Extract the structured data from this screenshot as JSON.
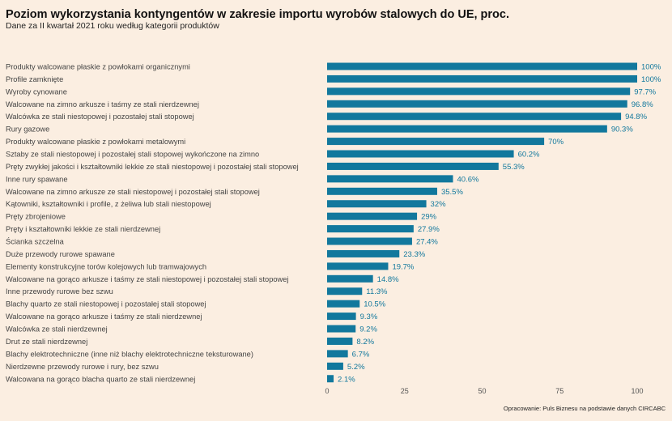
{
  "chart_data": {
    "type": "bar",
    "orientation": "horizontal",
    "title": "Poziom wykorzystania kontyngentów w zakresie importu wyrobów stalowych do UE, proc.",
    "subtitle": "Dane za II kwartał 2021 roku według kategorii produktów",
    "source": "Opracowanie: Puls Biznesu na podstawie danych CIRCABC",
    "categories": [
      "Produkty walcowane płaskie z powłokami organicznymi",
      "Profile zamknięte",
      "Wyroby cynowane",
      "Walcowane na zimno arkusze i taśmy ze stali nierdzewnej",
      "Walcówka ze stali niestopowej i pozostałej stali stopowej",
      "Rury gazowe",
      "Produkty walcowane płaskie z powłokami metalowymi",
      "Sztaby ze stali niestopowej i pozostałej stali stopowej wykończone na zimno",
      "Pręty zwykłej jakości i kształtowniki lekkie ze stali niestopowej i pozostałej stali stopowej",
      "Inne rury spawane",
      "Walcowane na zimno arkusze ze stali niestopowej i pozostałej stali stopowej",
      "Kątowniki, kształtowniki i profile, z żeliwa lub stali niestopowej",
      "Pręty zbrojeniowe",
      "Pręty i kształtowniki lekkie ze stali nierdzewnej",
      "Ścianka szczelna",
      "Duże przewody rurowe spawane",
      "Elementy konstrukcyjne torów kolejowych lub tramwajowych",
      "Walcowane na gorąco arkusze i taśmy ze stali niestopowej i pozostałej stali stopowej",
      "Inne przewody rurowe bez szwu",
      "Blachy quarto ze stali niestopowej i pozostałej stali stopowej",
      "Walcowane na gorąco arkusze i taśmy ze stali nierdzewnej",
      "Walcówka ze stali nierdzewnej",
      "Drut ze stali nierdzewnej",
      "Blachy elektrotechniczne (inne niż blachy elektrotechniczne teksturowane)",
      "Nierdzewne przewody rurowe i rury, bez szwu",
      "Walcowana na gorąco blacha quarto ze stali nierdzewnej"
    ],
    "values": [
      100,
      100,
      97.7,
      96.8,
      94.8,
      90.3,
      70,
      60.2,
      55.3,
      40.6,
      35.5,
      32,
      29,
      27.9,
      27.4,
      23.3,
      19.7,
      14.8,
      11.3,
      10.5,
      9.3,
      9.2,
      8.2,
      6.7,
      5.2,
      2.1
    ],
    "value_labels": [
      "100%",
      "100%",
      "97.7%",
      "96.8%",
      "94.8%",
      "90.3%",
      "70%",
      "60.2%",
      "55.3%",
      "40.6%",
      "35.5%",
      "32%",
      "29%",
      "27.9%",
      "27.4%",
      "23.3%",
      "19.7%",
      "14.8%",
      "11.3%",
      "10.5%",
      "9.3%",
      "9.2%",
      "8.2%",
      "6.7%",
      "5.2%",
      "2.1%"
    ],
    "xlim": [
      0,
      100
    ],
    "xticks": [
      0,
      25,
      50,
      75,
      100
    ],
    "xtick_labels": [
      "0",
      "25",
      "50",
      "75",
      "100"
    ],
    "grid": false,
    "colors": {
      "bar": "#12789d",
      "value_label": "#12789d",
      "category_label": "#444444",
      "tick_label": "#555555",
      "background": "#fbeee1"
    }
  }
}
